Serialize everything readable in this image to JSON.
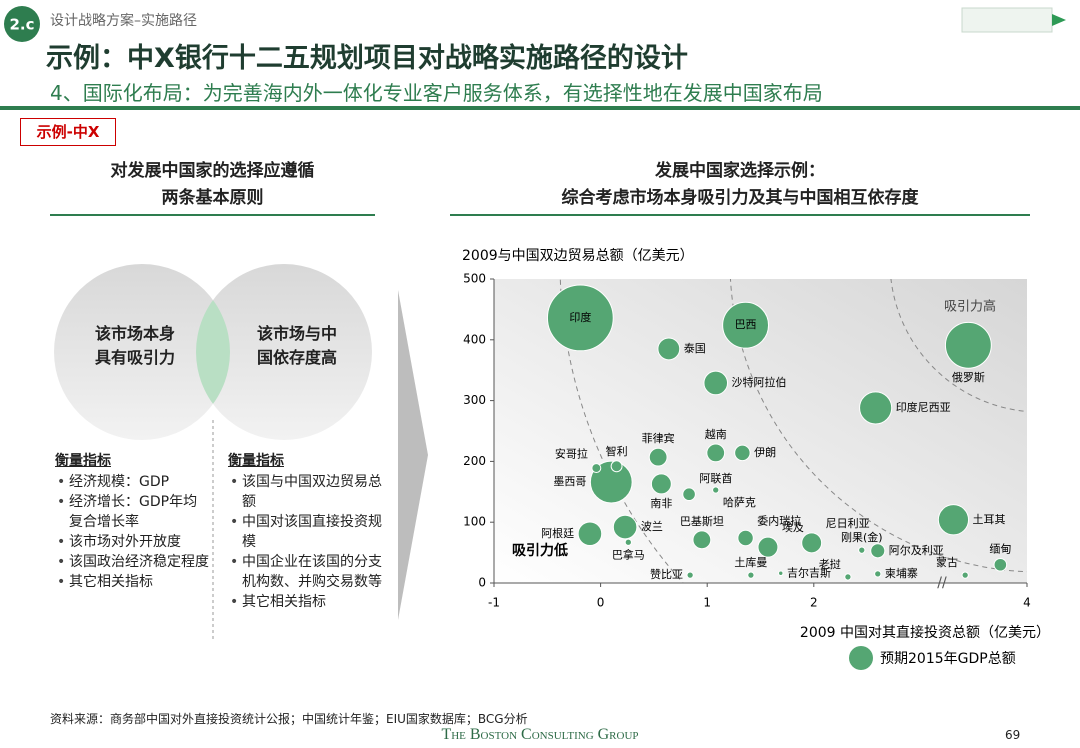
{
  "header": {
    "section": "2.c",
    "breadcrumb": "设计战略方案–实施路径",
    "title": "示例：中X银行十二五规划项目对战略实施路径的设计",
    "subtitle": "4、国际化布局：为完善海内外一体化专业客户服务体系，有选择性地在发展中国家布局",
    "tag": "示例-中X"
  },
  "left": {
    "heading": [
      "对发展中国家的选择应遵循",
      "两条基本原则"
    ],
    "circles": [
      "该市场本身具有吸引力",
      "该市场与中国依存度高"
    ],
    "metrics": [
      {
        "title": "衡量指标",
        "items": [
          "经济规模：GDP",
          "经济增长：GDP年均复合增长率",
          "该市场对外开放度",
          "该国政治经济稳定程度",
          "其它相关指标"
        ]
      },
      {
        "title": "衡量指标",
        "items": [
          "该国与中国双边贸易总额",
          "中国对该国直接投资规模",
          "中国企业在该国的分支机构数、并购交易数等",
          "其它相关指标"
        ]
      }
    ]
  },
  "chart_heading": [
    "发展中国家选择示例：",
    "综合考虑市场本身吸引力及其与中国相互依存度"
  ],
  "chart_data": {
    "type": "bubble",
    "y_title": "2009与中国双边贸易总额（亿美元）",
    "x_title": "2009 中国对其直接投资总额（亿美元）",
    "size_legend": "预期2015年GDP总额",
    "annotations": [
      "吸引力高",
      "吸引力低"
    ],
    "color": "#55a673",
    "xlim": [
      -1,
      4
    ],
    "xticks": [
      -1,
      0,
      1,
      2,
      4
    ],
    "ylim": [
      0,
      500
    ],
    "yticks": [
      0,
      100,
      200,
      300,
      400,
      500
    ],
    "labels": [
      "印度",
      "巴西",
      "泰国",
      "沙特阿拉伯",
      "俄罗斯",
      "印度尼西亚",
      "越南",
      "伊朗",
      "菲律宾",
      "墨西哥",
      "智利",
      "安哥拉",
      "南非",
      "阿联酋",
      "哈萨克",
      "土耳其",
      "阿根廷",
      "波兰",
      "巴拿马",
      "巴基斯坦",
      "委内瑞拉",
      "埃及",
      "尼日利亚",
      "刚果(金)",
      "阿尔及利亚",
      "缅甸",
      "蒙古",
      "柬埔寨",
      "老挝",
      "吉尔吉斯",
      "土库曼",
      "赞比亚"
    ],
    "x": [
      -0.19,
      1.36,
      0.64,
      1.08,
      3.45,
      2.58,
      1.08,
      1.33,
      0.54,
      0.1,
      0.15,
      -0.04,
      0.57,
      0.83,
      1.08,
      3.31,
      -0.1,
      0.23,
      0.26,
      0.95,
      1.36,
      1.57,
      1.98,
      2.45,
      2.6,
      3.75,
      3.42,
      2.6,
      2.32,
      1.69,
      1.41,
      0.84
    ],
    "y": [
      436,
      424,
      385,
      329,
      391,
      288,
      214,
      214,
      207,
      166,
      192,
      189,
      163,
      146,
      153,
      104,
      81,
      92,
      67,
      71,
      74,
      59,
      66,
      54,
      53,
      30,
      13,
      15,
      10,
      16,
      13,
      13
    ],
    "sizes": [
      109,
      53,
      12,
      14,
      53,
      26,
      8,
      6,
      8,
      44,
      3,
      2,
      10,
      4,
      1,
      23,
      14,
      14,
      1,
      8,
      6,
      10,
      10,
      1,
      5,
      4,
      1,
      1,
      1,
      0.5,
      1,
      1
    ]
  },
  "footer": {
    "source": "资料来源：商务部中国对外直接投资统计公报；中国统计年鉴；EIU国家数据库；BCG分析",
    "logo": "The Boston Consulting Group",
    "page": "69"
  }
}
